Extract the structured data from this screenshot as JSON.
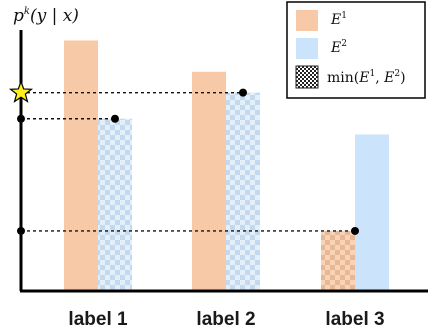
{
  "chart_data": {
    "type": "bar",
    "ylabel": "p^k(y | x)",
    "ylabel_parts": {
      "base": "p",
      "sup": "k",
      "args": "(y | x)"
    },
    "categories": [
      "label 1",
      "label 2",
      "label 3"
    ],
    "ylim": [
      0,
      1
    ],
    "grid": false,
    "legend_position": "top-right",
    "series": [
      {
        "name": "E¹",
        "legend_base": "E",
        "legend_sup": "1",
        "color": "#f8c9a6",
        "values": [
          0.96,
          0.84,
          0.23
        ]
      },
      {
        "name": "E²",
        "legend_base": "E",
        "legend_sup": "2",
        "color": "#cce4fb",
        "values": [
          0.66,
          0.76,
          0.6
        ]
      }
    ],
    "min_series": {
      "name": "min(E¹, E²)",
      "legend_text": {
        "prefix": "min(",
        "a_base": "E",
        "a_sup": "1",
        "sep": ", ",
        "b_base": "E",
        "b_sup": "2",
        "suffix": ")"
      },
      "values": [
        0.66,
        0.76,
        0.23
      ]
    },
    "annotations": [
      {
        "category": "label 1",
        "value": 0.66,
        "marker": "dot"
      },
      {
        "category": "label 2",
        "value": 0.76,
        "marker": "star"
      },
      {
        "category": "label 3",
        "value": 0.23,
        "marker": "dot"
      }
    ],
    "colors": {
      "star": "#ffee22",
      "axis": "#000000"
    }
  }
}
